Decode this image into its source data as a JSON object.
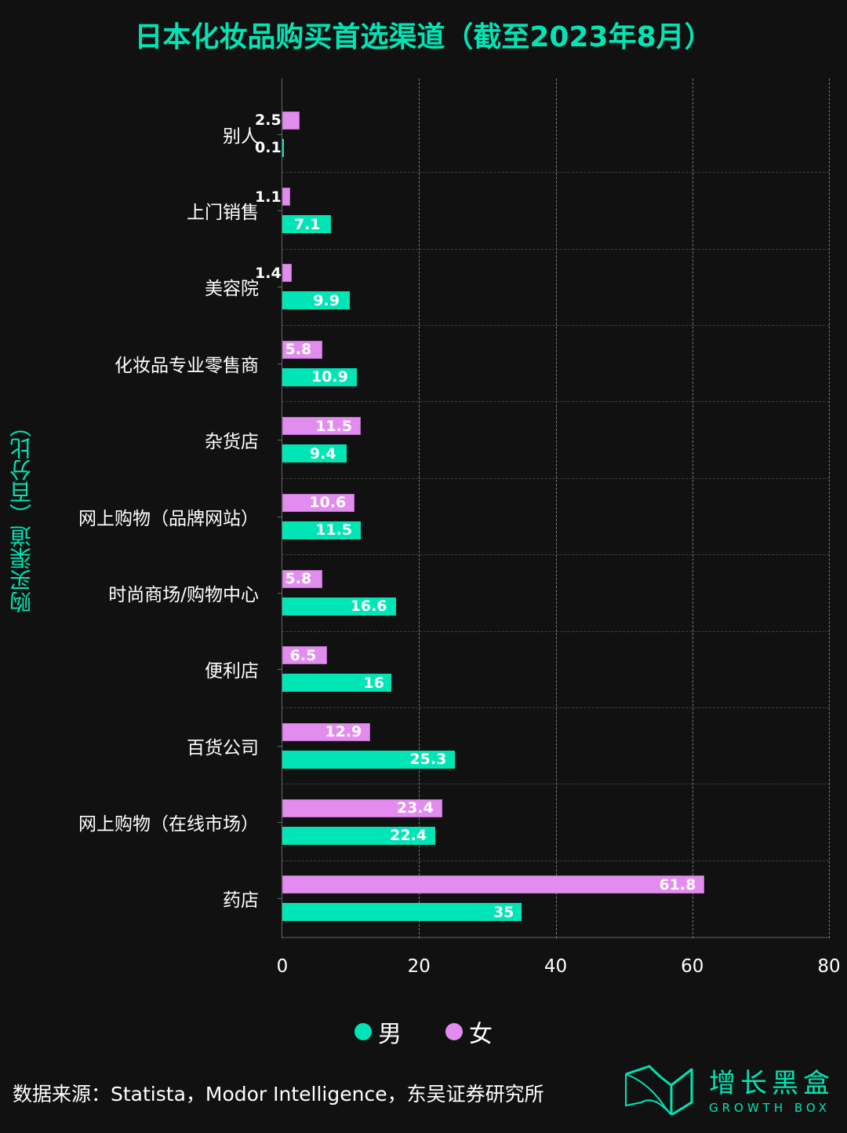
{
  "title": "日本化妆品购买首选渠道（截至2023年8月）",
  "ylabel": "购买渠道（百分比）",
  "legend": [
    {
      "label": "男",
      "color": "#00e5b5"
    },
    {
      "label": "女",
      "color": "#e38cef"
    }
  ],
  "source": "数据来源：Statista，Modor Intelligence，东吴证券研究所",
  "logo": {
    "cn": "增长黑盒",
    "en": "GROWTH BOX"
  },
  "colors": {
    "background": "#111111",
    "male": "#00e5b5",
    "female": "#e38cef",
    "accent": "#00e5b5"
  },
  "chart_data": {
    "type": "bar",
    "orientation": "horizontal",
    "title": "日本化妆品购买首选渠道（截至2023年8月）",
    "xlabel": "",
    "ylabel": "购买渠道（百分比）",
    "xlim": [
      0,
      80
    ],
    "xticks": [
      "0",
      "20",
      "40",
      "60",
      "80"
    ],
    "grid": true,
    "legend_position": "bottom",
    "categories": [
      "别人",
      "上门销售",
      "美容院",
      "化妆品专业零售商",
      "杂货店",
      "网上购物（品牌网站）",
      "时尚商场/购物中心",
      "便利店",
      "百货公司",
      "网上购物（在线市场）",
      "药店"
    ],
    "series": [
      {
        "name": "女",
        "color": "#e38cef",
        "values": [
          2.5,
          1.1,
          1.4,
          5.8,
          11.5,
          10.6,
          5.8,
          6.5,
          12.9,
          23.4,
          61.8
        ]
      },
      {
        "name": "男",
        "color": "#00e5b5",
        "values": [
          0.1,
          7.1,
          9.9,
          10.9,
          9.4,
          11.5,
          16.6,
          16,
          25.3,
          22.4,
          35
        ]
      }
    ]
  }
}
